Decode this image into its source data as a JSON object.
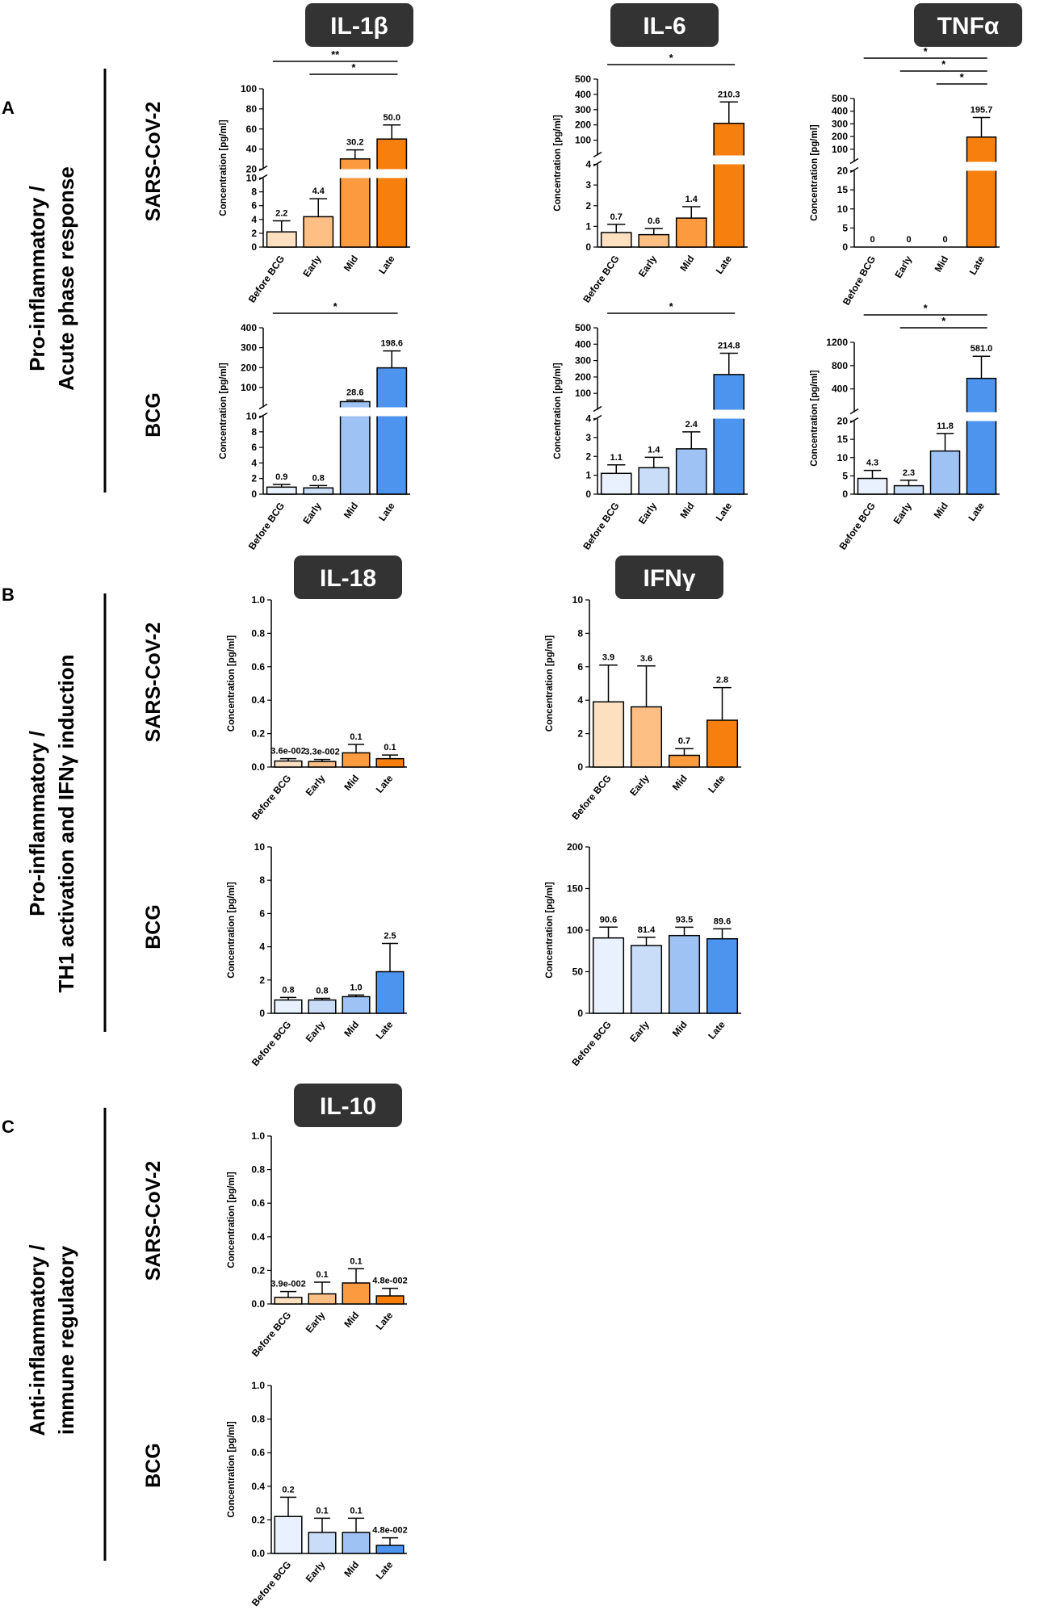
{
  "figure": {
    "panel_labels": [
      "A",
      "B",
      "C"
    ],
    "section_titles": [
      [
        "Pro-inflammatory /",
        "Acute phase response"
      ],
      [
        "Pro-inflammatory /",
        "TH1 activation and IFNγ induction"
      ],
      [
        "Anti-inflammatory  /",
        "immune regulatory"
      ]
    ],
    "row_labels": [
      "SARS-CoV-2",
      "BCG",
      "SARS-CoV-2",
      "BCG",
      "SARS-CoV-2",
      "BCG"
    ],
    "cytokine_titles": [
      "IL-1β",
      "IL-6",
      "TNFα",
      "IL-18",
      "IFNγ",
      "IL-10"
    ],
    "colors": {
      "sars": [
        "#fde0c0",
        "#fdbf84",
        "#fb9a3e",
        "#f77f0e"
      ],
      "bcg": [
        "#e8f1fd",
        "#c9ddf9",
        "#9ec2f4",
        "#4d94ef"
      ],
      "title_box": "#333333"
    }
  },
  "chart_data": [
    {
      "id": "il1b-sars",
      "type": "bar",
      "ylabel": "Concentration [pg/ml]",
      "categories": [
        "Before BCG",
        "Early",
        "Mid",
        "Late"
      ],
      "values": [
        2.2,
        4.4,
        30.2,
        50.0
      ],
      "errors": [
        1.6,
        2.6,
        9,
        14
      ],
      "labels": [
        "2.2",
        "4.4",
        "30.2",
        "50.0"
      ],
      "color_set": "sars",
      "broken_axis": {
        "lower": [
          0,
          10
        ],
        "upper": [
          20,
          100
        ],
        "lower_ticks": [
          0,
          2,
          4,
          6,
          8,
          10
        ],
        "upper_ticks": [
          20,
          40,
          60,
          80,
          100
        ]
      },
      "significance": [
        {
          "from": 0,
          "to": 3,
          "label": "**"
        },
        {
          "from": 1,
          "to": 3,
          "label": "*"
        }
      ]
    },
    {
      "id": "il6-sars",
      "type": "bar",
      "ylabel": "Concentration [pg/ml]",
      "categories": [
        "Before BCG",
        "Early",
        "Mid",
        "Late"
      ],
      "values": [
        0.7,
        0.6,
        1.4,
        210.3
      ],
      "errors": [
        0.4,
        0.3,
        0.55,
        140
      ],
      "labels": [
        "0.7",
        "0.6",
        "1.4",
        "210.3"
      ],
      "color_set": "sars",
      "broken_axis": {
        "lower": [
          0,
          4
        ],
        "upper": [
          0,
          500
        ],
        "lower_ticks": [
          0,
          1,
          2,
          3,
          4
        ],
        "upper_ticks": [
          100,
          200,
          300,
          400,
          500
        ]
      },
      "significance": [
        {
          "from": 0,
          "to": 3,
          "label": "*"
        }
      ]
    },
    {
      "id": "tnfa-sars",
      "type": "bar",
      "ylabel": "Concentration [pg/ml]",
      "categories": [
        "Before BCG",
        "Early",
        "Mid",
        "Late"
      ],
      "values": [
        0,
        0,
        0,
        195.7
      ],
      "errors": [
        0,
        0,
        0,
        155
      ],
      "labels": [
        "0",
        "0",
        "0",
        "195.7"
      ],
      "color_set": "sars",
      "broken_axis": {
        "lower": [
          0,
          20
        ],
        "upper": [
          0,
          500
        ],
        "lower_ticks": [
          0,
          5,
          10,
          15,
          20
        ],
        "upper_ticks": [
          100,
          200,
          300,
          400,
          500
        ]
      },
      "significance": [
        {
          "from": 0,
          "to": 3,
          "label": "*"
        },
        {
          "from": 1,
          "to": 3,
          "label": "*"
        },
        {
          "from": 2,
          "to": 3,
          "label": "*"
        }
      ]
    },
    {
      "id": "il1b-bcg",
      "type": "bar",
      "ylabel": "Concentration [pg/ml]",
      "categories": [
        "Before BCG",
        "Early",
        "Mid",
        "Late"
      ],
      "values": [
        0.9,
        0.8,
        28.6,
        198.6
      ],
      "errors": [
        0.35,
        0.3,
        8,
        85
      ],
      "labels": [
        "0.9",
        "0.8",
        "28.6",
        "198.6"
      ],
      "color_set": "bcg",
      "broken_axis": {
        "lower": [
          0,
          10
        ],
        "upper": [
          0,
          400
        ],
        "lower_ticks": [
          0,
          2,
          4,
          6,
          8,
          10
        ],
        "upper_ticks": [
          100,
          200,
          300,
          400
        ]
      },
      "significance": [
        {
          "from": 0,
          "to": 3,
          "label": "*"
        }
      ]
    },
    {
      "id": "il6-bcg",
      "type": "bar",
      "ylabel": "Concentration [pg/ml]",
      "categories": [
        "Before BCG",
        "Early",
        "Mid",
        "Late"
      ],
      "values": [
        1.1,
        1.4,
        2.4,
        214.8
      ],
      "errors": [
        0.45,
        0.55,
        0.9,
        130
      ],
      "labels": [
        "1.1",
        "1.4",
        "2.4",
        "214.8"
      ],
      "color_set": "bcg",
      "broken_axis": {
        "lower": [
          0,
          4
        ],
        "upper": [
          0,
          500
        ],
        "lower_ticks": [
          0,
          1,
          2,
          3,
          4
        ],
        "upper_ticks": [
          100,
          200,
          300,
          400,
          500
        ]
      },
      "significance": [
        {
          "from": 0,
          "to": 3,
          "label": "*"
        }
      ]
    },
    {
      "id": "tnfa-bcg",
      "type": "bar",
      "ylabel": "Concentration [pg/ml]",
      "categories": [
        "Before BCG",
        "Early",
        "Mid",
        "Late"
      ],
      "values": [
        4.3,
        2.3,
        11.8,
        581.0
      ],
      "errors": [
        2.2,
        1.5,
        4.8,
        380
      ],
      "labels": [
        "4.3",
        "2.3",
        "11.8",
        "581.0"
      ],
      "color_set": "bcg",
      "broken_axis": {
        "lower": [
          0,
          20
        ],
        "upper": [
          0,
          1200
        ],
        "lower_ticks": [
          0,
          5,
          10,
          15,
          20
        ],
        "upper_ticks": [
          400,
          800,
          1200
        ]
      },
      "significance": [
        {
          "from": 0,
          "to": 3,
          "label": "*"
        },
        {
          "from": 1,
          "to": 3,
          "label": "*"
        }
      ]
    },
    {
      "id": "il18-sars",
      "type": "bar",
      "ylabel": "Concentration [pg/ml]",
      "categories": [
        "Before BCG",
        "Early",
        "Mid",
        "Late"
      ],
      "values": [
        0.036,
        0.033,
        0.085,
        0.05
      ],
      "errors": [
        0.014,
        0.012,
        0.05,
        0.022
      ],
      "labels": [
        "3.6e-002",
        "3.3e-002",
        "0.1",
        "0.1"
      ],
      "color_set": "sars",
      "ylim": [
        0,
        1.0
      ],
      "yticks": [
        0,
        0.2,
        0.4,
        0.6,
        0.8,
        1.0
      ],
      "tick_format": "1"
    },
    {
      "id": "ifng-sars",
      "type": "bar",
      "ylabel": "Concentration [pg/ml]",
      "categories": [
        "Before BCG",
        "Early",
        "Mid",
        "Late"
      ],
      "values": [
        3.9,
        3.6,
        0.7,
        2.8
      ],
      "errors": [
        2.2,
        2.45,
        0.4,
        1.95
      ],
      "labels": [
        "3.9",
        "3.6",
        "0.7",
        "2.8"
      ],
      "color_set": "sars",
      "ylim": [
        0,
        10
      ],
      "yticks": [
        0,
        2,
        4,
        6,
        8,
        10
      ],
      "tick_format": "0"
    },
    {
      "id": "il18-bcg",
      "type": "bar",
      "ylabel": "Concentration [pg/ml]",
      "categories": [
        "Before BCG",
        "Early",
        "Mid",
        "Late"
      ],
      "values": [
        0.8,
        0.8,
        1.0,
        2.5
      ],
      "errors": [
        0.15,
        0.1,
        0.1,
        1.7
      ],
      "labels": [
        "0.8",
        "0.8",
        "1.0",
        "2.5"
      ],
      "color_set": "bcg",
      "ylim": [
        0,
        10
      ],
      "yticks": [
        0,
        2,
        4,
        6,
        8,
        10
      ],
      "tick_format": "0"
    },
    {
      "id": "ifng-bcg",
      "type": "bar",
      "ylabel": "Concentration [pg/ml]",
      "categories": [
        "Before BCG",
        "Early",
        "Mid",
        "Late"
      ],
      "values": [
        90.6,
        81.4,
        93.5,
        89.6
      ],
      "errors": [
        13,
        10,
        10,
        12
      ],
      "labels": [
        "90.6",
        "81.4",
        "93.5",
        "89.6"
      ],
      "color_set": "bcg",
      "ylim": [
        0,
        200
      ],
      "yticks": [
        0,
        50,
        100,
        150,
        200
      ],
      "tick_format": "0"
    },
    {
      "id": "il10-sars",
      "type": "bar",
      "ylabel": "Concentration [pg/ml]",
      "categories": [
        "Before BCG",
        "Early",
        "Mid",
        "Late"
      ],
      "values": [
        0.039,
        0.06,
        0.125,
        0.048
      ],
      "errors": [
        0.035,
        0.07,
        0.085,
        0.045
      ],
      "labels": [
        "3.9e-002",
        "0.1",
        "0.1",
        "4.8e-002"
      ],
      "color_set": "sars",
      "ylim": [
        0,
        1.0
      ],
      "yticks": [
        0,
        0.2,
        0.4,
        0.6,
        0.8,
        1.0
      ],
      "tick_format": "1"
    },
    {
      "id": "il10-bcg",
      "type": "bar",
      "ylabel": "Concentration [pg/ml]",
      "categories": [
        "Before BCG",
        "Early",
        "Mid",
        "Late"
      ],
      "values": [
        0.22,
        0.125,
        0.125,
        0.048
      ],
      "errors": [
        0.115,
        0.085,
        0.085,
        0.045
      ],
      "labels": [
        "0.2",
        "0.1",
        "0.1",
        "4.8e-002"
      ],
      "color_set": "bcg",
      "ylim": [
        0,
        1.0
      ],
      "yticks": [
        0,
        0.2,
        0.4,
        0.6,
        0.8,
        1.0
      ],
      "tick_format": "1"
    }
  ]
}
